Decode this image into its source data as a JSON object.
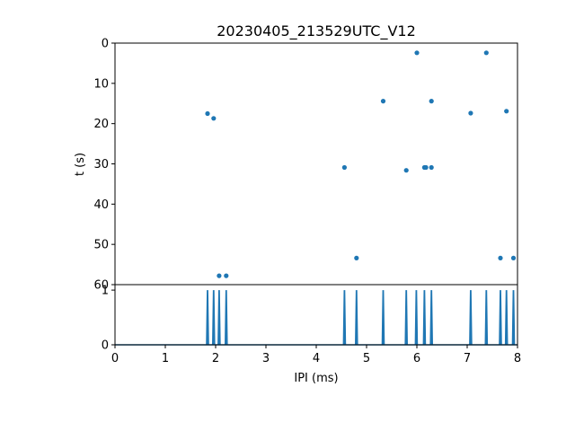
{
  "chart_data": [
    {
      "type": "scatter",
      "title": "20230405_213529UTC_V12",
      "xlabel": "",
      "ylabel": "t (s)",
      "xlim": [
        0,
        8
      ],
      "ylim": [
        60,
        0
      ],
      "y_inverted": true,
      "grid": false,
      "yticks": [
        "0",
        "10",
        "20",
        "30",
        "40",
        "50",
        "60"
      ],
      "color": "#1f77b4",
      "points": [
        {
          "x": 1.84,
          "y": 17.5
        },
        {
          "x": 1.96,
          "y": 18.7
        },
        {
          "x": 2.07,
          "y": 57.8
        },
        {
          "x": 2.21,
          "y": 57.8
        },
        {
          "x": 4.56,
          "y": 30.9
        },
        {
          "x": 4.8,
          "y": 53.4
        },
        {
          "x": 5.33,
          "y": 14.4
        },
        {
          "x": 5.79,
          "y": 31.6
        },
        {
          "x": 6.0,
          "y": 2.4
        },
        {
          "x": 6.15,
          "y": 30.9
        },
        {
          "x": 6.18,
          "y": 30.9
        },
        {
          "x": 6.29,
          "y": 14.4
        },
        {
          "x": 6.29,
          "y": 30.9
        },
        {
          "x": 7.07,
          "y": 17.4
        },
        {
          "x": 7.38,
          "y": 2.4
        },
        {
          "x": 7.66,
          "y": 53.4
        },
        {
          "x": 7.78,
          "y": 16.9
        },
        {
          "x": 7.92,
          "y": 53.4
        }
      ]
    },
    {
      "type": "line",
      "title": "",
      "xlabel": "IPI (ms)",
      "ylabel": "",
      "xlim": [
        0,
        8
      ],
      "ylim": [
        0,
        1.1
      ],
      "grid": false,
      "xticks": [
        "0",
        "1",
        "2",
        "3",
        "4",
        "5",
        "6",
        "7",
        "8"
      ],
      "yticks": [
        "0",
        "1"
      ],
      "color": "#1f77b4",
      "baseline": 0,
      "spikes": [
        {
          "x": 1.84,
          "y": 1
        },
        {
          "x": 1.96,
          "y": 1
        },
        {
          "x": 2.07,
          "y": 1
        },
        {
          "x": 2.21,
          "y": 1
        },
        {
          "x": 4.56,
          "y": 1
        },
        {
          "x": 4.8,
          "y": 1
        },
        {
          "x": 5.33,
          "y": 1
        },
        {
          "x": 5.79,
          "y": 1
        },
        {
          "x": 5.99,
          "y": 1
        },
        {
          "x": 6.15,
          "y": 1
        },
        {
          "x": 6.29,
          "y": 1
        },
        {
          "x": 7.07,
          "y": 1
        },
        {
          "x": 7.38,
          "y": 1
        },
        {
          "x": 7.66,
          "y": 1
        },
        {
          "x": 7.78,
          "y": 1
        },
        {
          "x": 7.92,
          "y": 1
        }
      ]
    }
  ]
}
